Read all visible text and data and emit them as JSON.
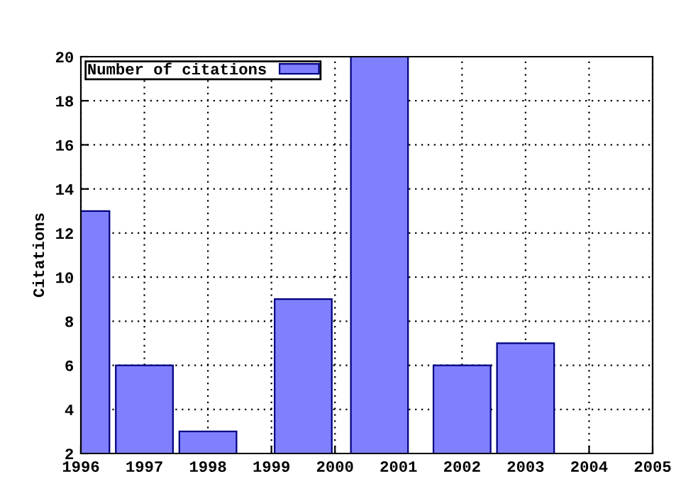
{
  "chart_data": {
    "type": "bar",
    "ylabel": "Citations",
    "x": [
      1996,
      1997,
      1998,
      1999.5,
      2000.7,
      2002,
      2003
    ],
    "series": [
      {
        "name": "Number of citations",
        "color": "#8080ff",
        "values": [
          13,
          6,
          3,
          9,
          20,
          6,
          7
        ]
      }
    ],
    "xlim": [
      1996,
      2005
    ],
    "xticks": [
      1996,
      1997,
      1998,
      1999,
      2000,
      2001,
      2002,
      2003,
      2004,
      2005
    ],
    "ylim": [
      2,
      20
    ],
    "yticks": [
      2,
      4,
      6,
      8,
      10,
      12,
      14,
      16,
      18,
      20
    ],
    "grid": true,
    "legend": "top left"
  }
}
